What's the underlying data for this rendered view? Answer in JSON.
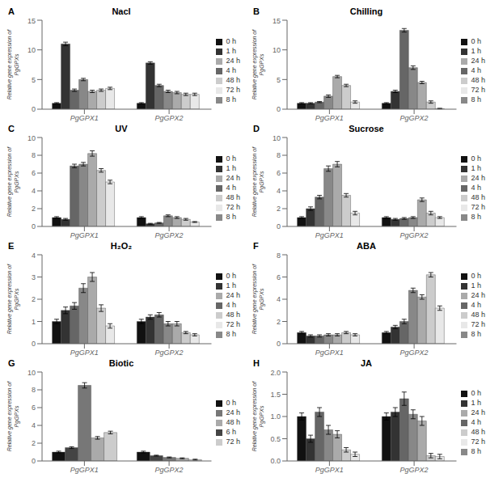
{
  "chart_data": [
    {
      "type": "bar",
      "label": "A",
      "title": "Nacl",
      "ylabel": "Relative gene expression of\nPgGPXs",
      "categories": [
        "PgGPX1",
        "PgGPX2"
      ],
      "ylim": [
        0,
        15
      ],
      "yticks": [
        0,
        5,
        10,
        15
      ],
      "grid": false,
      "legend": "right",
      "series": [
        {
          "name": "0 h",
          "color": "#111111",
          "values": [
            1.0,
            1.0
          ],
          "errors": [
            0.1,
            0.1
          ]
        },
        {
          "name": "1 h",
          "color": "#333333",
          "values": [
            11.0,
            7.8
          ],
          "errors": [
            0.3,
            0.2
          ]
        },
        {
          "name": "4 h",
          "color": "#666666",
          "values": [
            3.2,
            4.0
          ],
          "errors": [
            0.2,
            0.2
          ]
        },
        {
          "name": "8 h",
          "color": "#888888",
          "values": [
            5.0,
            3.0
          ],
          "errors": [
            0.2,
            0.2
          ]
        },
        {
          "name": "24 h",
          "color": "#aaaaaa",
          "values": [
            3.0,
            2.8
          ],
          "errors": [
            0.2,
            0.2
          ]
        },
        {
          "name": "48 h",
          "color": "#cccccc",
          "values": [
            3.2,
            2.5
          ],
          "errors": [
            0.2,
            0.2
          ]
        },
        {
          "name": "72 h",
          "color": "#e8e8e8",
          "values": [
            3.5,
            2.5
          ],
          "errors": [
            0.2,
            0.2
          ]
        }
      ]
    },
    {
      "type": "bar",
      "label": "B",
      "title": "Chilling",
      "ylabel": "Relative gene expression of\nPgGPXs",
      "categories": [
        "PgGPX1",
        "PgGPX2"
      ],
      "ylim": [
        0,
        15
      ],
      "yticks": [
        0,
        5,
        10,
        15
      ],
      "grid": false,
      "legend": "right",
      "series": [
        {
          "name": "0 h",
          "color": "#111111",
          "values": [
            1.0,
            1.0
          ],
          "errors": [
            0.1,
            0.1
          ]
        },
        {
          "name": "1 h",
          "color": "#333333",
          "values": [
            1.0,
            3.0
          ],
          "errors": [
            0.1,
            0.2
          ]
        },
        {
          "name": "4 h",
          "color": "#666666",
          "values": [
            1.2,
            13.3
          ],
          "errors": [
            0.1,
            0.3
          ]
        },
        {
          "name": "8 h",
          "color": "#888888",
          "values": [
            2.2,
            7.0
          ],
          "errors": [
            0.2,
            0.3
          ]
        },
        {
          "name": "24 h",
          "color": "#aaaaaa",
          "values": [
            5.5,
            4.5
          ],
          "errors": [
            0.2,
            0.2
          ]
        },
        {
          "name": "48 h",
          "color": "#cccccc",
          "values": [
            4.0,
            1.2
          ],
          "errors": [
            0.2,
            0.2
          ]
        },
        {
          "name": "72 h",
          "color": "#e8e8e8",
          "values": [
            1.2,
            0.1
          ],
          "errors": [
            0.2,
            0.05
          ]
        }
      ]
    },
    {
      "type": "bar",
      "label": "C",
      "title": "UV",
      "ylabel": "Relative gene expression of\nPgGPXs",
      "categories": [
        "PgGPX1",
        "PgGPX2"
      ],
      "ylim": [
        0,
        10
      ],
      "yticks": [
        0,
        2,
        4,
        6,
        8,
        10
      ],
      "grid": false,
      "legend": "right",
      "series": [
        {
          "name": "0 h",
          "color": "#111111",
          "values": [
            1.0,
            1.0
          ],
          "errors": [
            0.1,
            0.1
          ]
        },
        {
          "name": "1 h",
          "color": "#333333",
          "values": [
            0.8,
            0.3
          ],
          "errors": [
            0.1,
            0.05
          ]
        },
        {
          "name": "4 h",
          "color": "#666666",
          "values": [
            6.8,
            0.4
          ],
          "errors": [
            0.2,
            0.05
          ]
        },
        {
          "name": "8 h",
          "color": "#888888",
          "values": [
            7.0,
            1.2
          ],
          "errors": [
            0.2,
            0.1
          ]
        },
        {
          "name": "24 h",
          "color": "#aaaaaa",
          "values": [
            8.2,
            1.0
          ],
          "errors": [
            0.3,
            0.1
          ]
        },
        {
          "name": "48 h",
          "color": "#cccccc",
          "values": [
            6.3,
            0.8
          ],
          "errors": [
            0.2,
            0.1
          ]
        },
        {
          "name": "72 h",
          "color": "#e8e8e8",
          "values": [
            5.0,
            0.5
          ],
          "errors": [
            0.2,
            0.05
          ]
        }
      ]
    },
    {
      "type": "bar",
      "label": "D",
      "title": "Sucrose",
      "ylabel": "Relative gene expression of\nPgGPXs",
      "categories": [
        "PgGPX1",
        "PgGPX2"
      ],
      "ylim": [
        0,
        10
      ],
      "yticks": [
        0,
        2,
        4,
        6,
        8,
        10
      ],
      "grid": false,
      "legend": "right",
      "series": [
        {
          "name": "0 h",
          "color": "#111111",
          "values": [
            1.0,
            1.0
          ],
          "errors": [
            0.1,
            0.1
          ]
        },
        {
          "name": "1 h",
          "color": "#333333",
          "values": [
            2.0,
            0.8
          ],
          "errors": [
            0.2,
            0.1
          ]
        },
        {
          "name": "4 h",
          "color": "#666666",
          "values": [
            3.3,
            0.9
          ],
          "errors": [
            0.2,
            0.1
          ]
        },
        {
          "name": "8 h",
          "color": "#888888",
          "values": [
            6.5,
            1.0
          ],
          "errors": [
            0.3,
            0.1
          ]
        },
        {
          "name": "24 h",
          "color": "#aaaaaa",
          "values": [
            7.0,
            3.0
          ],
          "errors": [
            0.3,
            0.2
          ]
        },
        {
          "name": "48 h",
          "color": "#cccccc",
          "values": [
            3.5,
            1.5
          ],
          "errors": [
            0.2,
            0.2
          ]
        },
        {
          "name": "72 h",
          "color": "#e8e8e8",
          "values": [
            1.5,
            1.0
          ],
          "errors": [
            0.2,
            0.1
          ]
        }
      ]
    },
    {
      "type": "bar",
      "label": "E",
      "title": "H₂O₂",
      "ylabel": "Relative gene expression of\nPgGPXs",
      "categories": [
        "PgGPX1",
        "PgGPX2"
      ],
      "ylim": [
        0,
        4
      ],
      "yticks": [
        0,
        1,
        2,
        3,
        4
      ],
      "grid": false,
      "legend": "right",
      "series": [
        {
          "name": "0 h",
          "color": "#111111",
          "values": [
            1.0,
            1.0
          ],
          "errors": [
            0.1,
            0.1
          ]
        },
        {
          "name": "1 h",
          "color": "#333333",
          "values": [
            1.5,
            1.2
          ],
          "errors": [
            0.15,
            0.1
          ]
        },
        {
          "name": "4 h",
          "color": "#666666",
          "values": [
            1.7,
            1.3
          ],
          "errors": [
            0.15,
            0.1
          ]
        },
        {
          "name": "8 h",
          "color": "#888888",
          "values": [
            2.5,
            0.9
          ],
          "errors": [
            0.2,
            0.1
          ]
        },
        {
          "name": "24 h",
          "color": "#aaaaaa",
          "values": [
            3.0,
            0.9
          ],
          "errors": [
            0.2,
            0.1
          ]
        },
        {
          "name": "48 h",
          "color": "#cccccc",
          "values": [
            1.6,
            0.5
          ],
          "errors": [
            0.15,
            0.05
          ]
        },
        {
          "name": "72 h",
          "color": "#e8e8e8",
          "values": [
            0.8,
            0.4
          ],
          "errors": [
            0.1,
            0.05
          ]
        }
      ]
    },
    {
      "type": "bar",
      "label": "F",
      "title": "ABA",
      "ylabel": "Relative gene expression of\nPgGPXs",
      "categories": [
        "PgGPX1",
        "PgGPX2"
      ],
      "ylim": [
        0,
        8
      ],
      "yticks": [
        0,
        2,
        4,
        6,
        8
      ],
      "grid": false,
      "legend": "right",
      "series": [
        {
          "name": "0 h",
          "color": "#111111",
          "values": [
            1.0,
            1.0
          ],
          "errors": [
            0.1,
            0.1
          ]
        },
        {
          "name": "1 h",
          "color": "#333333",
          "values": [
            0.7,
            1.5
          ],
          "errors": [
            0.1,
            0.15
          ]
        },
        {
          "name": "4 h",
          "color": "#666666",
          "values": [
            0.7,
            2.0
          ],
          "errors": [
            0.1,
            0.2
          ]
        },
        {
          "name": "8 h",
          "color": "#888888",
          "values": [
            0.8,
            4.8
          ],
          "errors": [
            0.1,
            0.2
          ]
        },
        {
          "name": "24 h",
          "color": "#aaaaaa",
          "values": [
            0.8,
            4.2
          ],
          "errors": [
            0.1,
            0.2
          ]
        },
        {
          "name": "48 h",
          "color": "#cccccc",
          "values": [
            1.0,
            6.2
          ],
          "errors": [
            0.1,
            0.2
          ]
        },
        {
          "name": "72 h",
          "color": "#e8e8e8",
          "values": [
            0.8,
            3.2
          ],
          "errors": [
            0.1,
            0.2
          ]
        }
      ]
    },
    {
      "type": "bar",
      "label": "G",
      "title": "Biotic",
      "ylabel": "Relative gene expression of\nPgGPXs",
      "categories": [
        "PgGPX1",
        "PgGPX2"
      ],
      "ylim": [
        0,
        10
      ],
      "yticks": [
        0,
        2,
        4,
        6,
        8,
        10
      ],
      "grid": false,
      "legend": "right",
      "series": [
        {
          "name": "0 h",
          "color": "#111111",
          "values": [
            1.0,
            1.0
          ],
          "errors": [
            0.1,
            0.1
          ]
        },
        {
          "name": "6 h",
          "color": "#444444",
          "values": [
            1.5,
            0.6
          ],
          "errors": [
            0.1,
            0.05
          ]
        },
        {
          "name": "24 h",
          "color": "#777777",
          "values": [
            8.5,
            0.4
          ],
          "errors": [
            0.3,
            0.05
          ]
        },
        {
          "name": "48 h",
          "color": "#aaaaaa",
          "values": [
            2.6,
            0.3
          ],
          "errors": [
            0.15,
            0.05
          ]
        },
        {
          "name": "72 h",
          "color": "#cccccc",
          "values": [
            3.2,
            0.15
          ],
          "errors": [
            0.15,
            0.05
          ]
        }
      ]
    },
    {
      "type": "bar",
      "label": "H",
      "title": "JA",
      "ylabel": "Relative gene expression of\nPgGPXs",
      "categories": [
        "PgGPX1",
        "PgGPX2"
      ],
      "ylim": [
        0,
        2
      ],
      "yticks": [
        {
          "value": 0,
          "label": "0.0"
        },
        0.5,
        {
          "value": 1.0,
          "label": "1.0"
        },
        1.5,
        {
          "value": 2.0,
          "label": "2.0"
        }
      ],
      "grid": false,
      "legend": "right",
      "series": [
        {
          "name": "0 h",
          "color": "#111111",
          "values": [
            1.0,
            1.0
          ],
          "errors": [
            0.08,
            0.08
          ]
        },
        {
          "name": "1 h",
          "color": "#333333",
          "values": [
            0.5,
            1.1
          ],
          "errors": [
            0.08,
            0.1
          ]
        },
        {
          "name": "4 h",
          "color": "#666666",
          "values": [
            1.1,
            1.4
          ],
          "errors": [
            0.1,
            0.15
          ]
        },
        {
          "name": "8 h",
          "color": "#888888",
          "values": [
            0.7,
            1.05
          ],
          "errors": [
            0.1,
            0.1
          ]
        },
        {
          "name": "24 h",
          "color": "#aaaaaa",
          "values": [
            0.6,
            0.9
          ],
          "errors": [
            0.08,
            0.1
          ]
        },
        {
          "name": "48 h",
          "color": "#cccccc",
          "values": [
            0.25,
            0.12
          ],
          "errors": [
            0.05,
            0.05
          ]
        },
        {
          "name": "72 h",
          "color": "#e8e8e8",
          "values": [
            0.15,
            0.1
          ],
          "errors": [
            0.05,
            0.05
          ]
        }
      ]
    }
  ]
}
